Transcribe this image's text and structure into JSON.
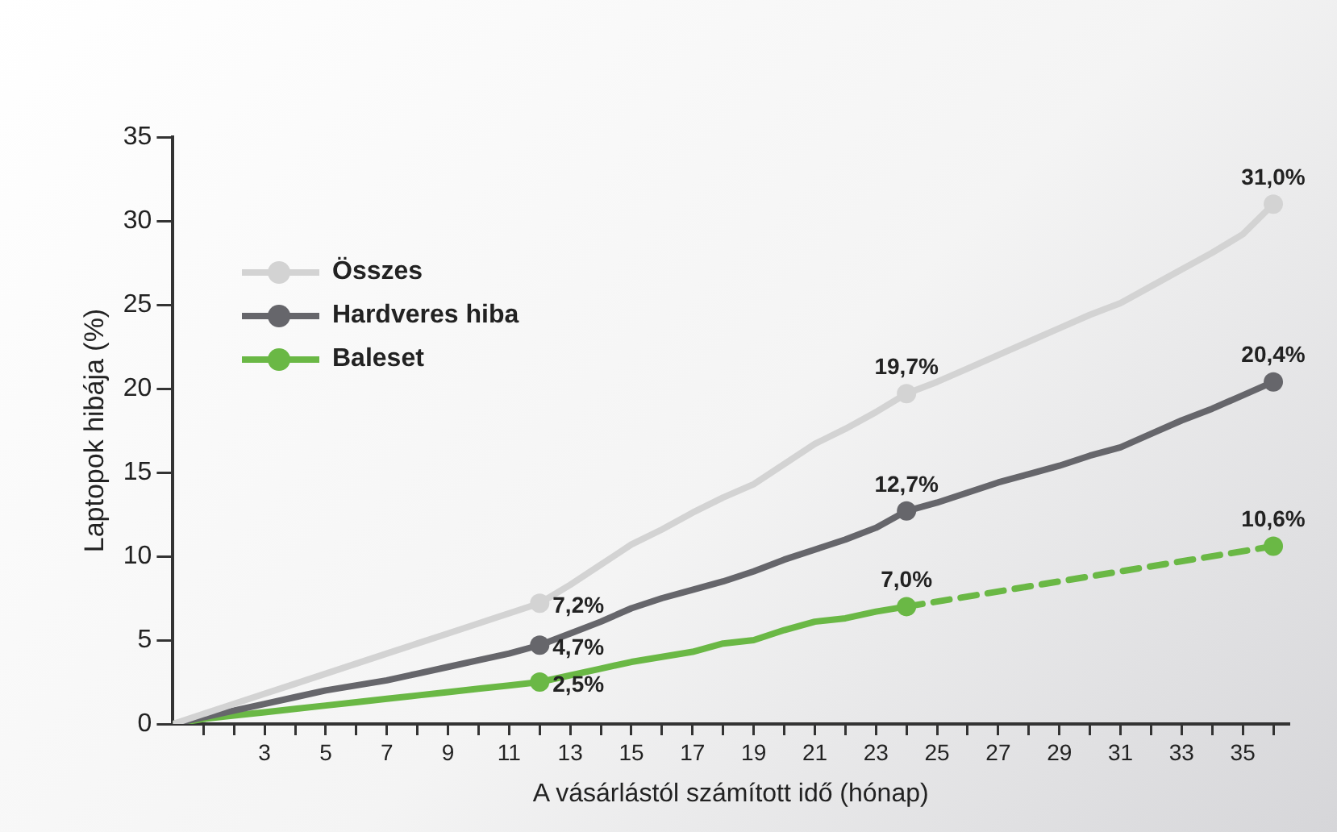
{
  "chart_data": {
    "type": "line",
    "xlabel": "A vásárlástól számított idő (hónap)",
    "ylabel": "Laptopok hibája (%)",
    "x": [
      0,
      1,
      2,
      3,
      4,
      5,
      6,
      7,
      8,
      9,
      10,
      11,
      12,
      13,
      14,
      15,
      16,
      17,
      18,
      19,
      20,
      21,
      22,
      23,
      24,
      25,
      26,
      27,
      28,
      29,
      30,
      31,
      32,
      33,
      34,
      35,
      36
    ],
    "xlim": [
      0,
      36.5
    ],
    "xticks": [
      {
        "value": 1,
        "label": null
      },
      {
        "value": 2,
        "label": null
      },
      3,
      {
        "value": 4,
        "label": null
      },
      5,
      {
        "value": 6,
        "label": null
      },
      7,
      {
        "value": 8,
        "label": null
      },
      9,
      {
        "value": 10,
        "label": null
      },
      11,
      {
        "value": 12,
        "label": null
      },
      13,
      {
        "value": 14,
        "label": null
      },
      15,
      {
        "value": 16,
        "label": null
      },
      17,
      {
        "value": 18,
        "label": null
      },
      19,
      {
        "value": 20,
        "label": null
      },
      21,
      {
        "value": 22,
        "label": null
      },
      23,
      {
        "value": 24,
        "label": null
      },
      25,
      {
        "value": 26,
        "label": null
      },
      27,
      {
        "value": 28,
        "label": null
      },
      29,
      {
        "value": 30,
        "label": null
      },
      31,
      {
        "value": 32,
        "label": null
      },
      33,
      {
        "value": 34,
        "label": null
      },
      35,
      {
        "value": 36,
        "label": null
      }
    ],
    "ylim": [
      0,
      35
    ],
    "yticks": [
      0,
      5,
      10,
      15,
      20,
      25,
      30,
      35
    ],
    "grid": false,
    "legend": "top left",
    "series": [
      {
        "name": "Összes",
        "color": "#d3d3d3",
        "line_style": "solid",
        "values": [
          0,
          0.6,
          1.2,
          1.8,
          2.4,
          3.0,
          3.6,
          4.2,
          4.8,
          5.4,
          6.0,
          6.6,
          7.2,
          8.3,
          9.5,
          10.7,
          11.6,
          12.6,
          13.5,
          14.3,
          15.5,
          16.7,
          17.6,
          18.6,
          19.7,
          20.4,
          21.2,
          22.0,
          22.8,
          23.6,
          24.4,
          25.1,
          26.1,
          27.1,
          28.1,
          29.2,
          31.0
        ],
        "value_labels": [
          null,
          null,
          null,
          null,
          null,
          null,
          null,
          null,
          null,
          null,
          null,
          null,
          "7,2%",
          null,
          null,
          null,
          null,
          null,
          null,
          null,
          null,
          null,
          null,
          null,
          "19,7%",
          null,
          null,
          null,
          null,
          null,
          null,
          null,
          null,
          null,
          null,
          null,
          "31,0%"
        ]
      },
      {
        "name": "Hardveres hiba",
        "color": "#66666b",
        "line_style": "solid",
        "values": [
          0,
          0.4,
          0.8,
          1.2,
          1.6,
          2.0,
          2.3,
          2.6,
          3.0,
          3.4,
          3.8,
          4.2,
          4.7,
          5.4,
          6.1,
          6.9,
          7.5,
          8.0,
          8.5,
          9.1,
          9.8,
          10.4,
          11.0,
          11.7,
          12.7,
          13.2,
          13.8,
          14.4,
          14.9,
          15.4,
          16.0,
          16.5,
          17.3,
          18.1,
          18.8,
          19.6,
          20.4
        ],
        "value_labels": [
          null,
          null,
          null,
          null,
          null,
          null,
          null,
          null,
          null,
          null,
          null,
          null,
          "4,7%",
          null,
          null,
          null,
          null,
          null,
          null,
          null,
          null,
          null,
          null,
          null,
          "12,7%",
          null,
          null,
          null,
          null,
          null,
          null,
          null,
          null,
          null,
          null,
          null,
          "20,4%"
        ]
      },
      {
        "name": "Baleset",
        "color": "#6ab845",
        "line_style": "solid",
        "x": [
          0,
          1,
          2,
          3,
          4,
          5,
          6,
          7,
          8,
          9,
          10,
          11,
          12,
          13,
          14,
          15,
          16,
          17,
          18,
          19,
          20,
          21,
          22,
          23,
          24
        ],
        "values": [
          0,
          0.3,
          0.5,
          0.7,
          0.9,
          1.1,
          1.3,
          1.5,
          1.7,
          1.9,
          2.1,
          2.3,
          2.5,
          2.9,
          3.3,
          3.7,
          4.0,
          4.3,
          4.8,
          5.0,
          5.6,
          6.1,
          6.3,
          6.7,
          7.0
        ],
        "value_labels": [
          null,
          null,
          null,
          null,
          null,
          null,
          null,
          null,
          null,
          null,
          null,
          null,
          "2,5%",
          null,
          null,
          null,
          null,
          null,
          null,
          null,
          null,
          null,
          null,
          null,
          "7,0%"
        ]
      },
      {
        "color": "#6ab845",
        "line_style": "dashed",
        "x": [
          24,
          36
        ],
        "values": [
          7.0,
          10.6
        ],
        "value_labels": [
          null,
          "10,6%"
        ]
      }
    ]
  }
}
